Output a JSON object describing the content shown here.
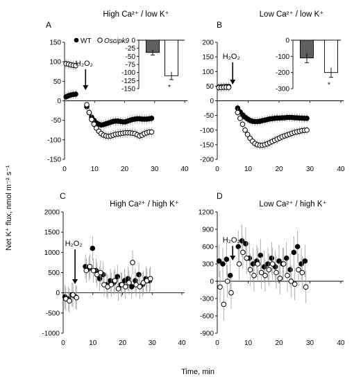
{
  "figure": {
    "shared_ylabel": "Net K⁺ flux, nmol m⁻² s⁻¹",
    "shared_xlabel": "Time, min"
  },
  "chart_data": [
    {
      "panel": "A",
      "type": "scatter",
      "title": "High Ca²⁺ / low K⁺",
      "annotation": "H₂O₂",
      "annotation_time": 7,
      "xlim": [
        0,
        40
      ],
      "ylim": [
        -150,
        150
      ],
      "xticks": [
        0,
        10,
        20,
        30,
        40
      ],
      "yticks": [
        -150,
        -100,
        -50,
        0,
        50,
        100,
        150
      ],
      "legend": [
        {
          "marker": "filled",
          "label": "WT"
        },
        {
          "marker": "open",
          "label": "Oscipk9",
          "italic": true
        }
      ],
      "series": [
        {
          "name": "WT",
          "marker": "filled",
          "errors": 12,
          "x": [
            0.5,
            1.3,
            2.1,
            2.9,
            3.7,
            7.4,
            8.2,
            9.0,
            9.8,
            10.6,
            11.4,
            12.2,
            13.0,
            13.8,
            14.6,
            15.4,
            16.2,
            17.0,
            17.8,
            18.6,
            19.4,
            20.2,
            21.0,
            21.8,
            22.6,
            23.4,
            24.2,
            25.0,
            25.8,
            26.6,
            27.4,
            28.2,
            29.0
          ],
          "y": [
            10,
            13,
            15,
            16,
            17,
            -15,
            -30,
            -42,
            -50,
            -57,
            -60,
            -62,
            -61,
            -59,
            -57,
            -55,
            -53,
            -52,
            -52,
            -53,
            -54,
            -54,
            -52,
            -50,
            -48,
            -47,
            -46,
            -46,
            -47,
            -47,
            -47,
            -46,
            -45
          ]
        },
        {
          "name": "Oscipk9",
          "marker": "open",
          "errors": 12,
          "x": [
            0.5,
            1.3,
            2.1,
            2.9,
            3.7,
            7.4,
            8.2,
            9.0,
            9.8,
            10.6,
            11.4,
            12.2,
            13.0,
            13.8,
            14.6,
            15.4,
            16.2,
            17.0,
            17.8,
            18.6,
            19.4,
            20.2,
            21.0,
            21.8,
            22.6,
            23.4,
            24.2,
            25.0,
            25.8,
            26.6,
            27.4,
            28.2,
            29.0
          ],
          "y": [
            95,
            94,
            92,
            91,
            90,
            -10,
            -30,
            -48,
            -60,
            -70,
            -78,
            -84,
            -88,
            -90,
            -91,
            -90,
            -88,
            -86,
            -85,
            -84,
            -83,
            -82,
            -82,
            -82,
            -83,
            -84,
            -87,
            -90,
            -88,
            -84,
            -82,
            -80,
            -80
          ]
        }
      ],
      "inset": {
        "ylim": [
          -150,
          0
        ],
        "yticks": [
          0,
          -25,
          -50,
          -75,
          -100,
          -125,
          -150
        ],
        "bars": [
          {
            "name": "WT",
            "fill": "#606060",
            "value": -38,
            "error": 8
          },
          {
            "name": "Oscipk9",
            "fill": "#ffffff",
            "value": -110,
            "error": 12
          }
        ],
        "significance": "*"
      }
    },
    {
      "panel": "B",
      "type": "scatter",
      "title": "Low Ca²⁺ / low K⁺",
      "annotation": "H₂O₂",
      "annotation_time": 5,
      "xlim": [
        0,
        40
      ],
      "ylim": [
        -200,
        200
      ],
      "xticks": [
        0,
        10,
        20,
        30,
        40
      ],
      "yticks": [
        -200,
        -150,
        -100,
        -50,
        0,
        50,
        100,
        150,
        200
      ],
      "series": [
        {
          "name": "WT",
          "marker": "filled",
          "errors": 15,
          "x": [
            0.5,
            1.3,
            2.1,
            2.9,
            3.7,
            6.6,
            7.4,
            8.2,
            9.0,
            9.8,
            10.6,
            11.4,
            12.2,
            13.0,
            13.8,
            14.6,
            15.4,
            16.2,
            17.0,
            17.8,
            18.6,
            19.4,
            20.2,
            21.0,
            21.8,
            22.6,
            23.4,
            24.2,
            25.0,
            25.8,
            26.6,
            27.4,
            28.2,
            29.0
          ],
          "y": [
            47,
            48,
            48,
            49,
            49,
            -25,
            -38,
            -48,
            -56,
            -62,
            -67,
            -70,
            -71,
            -71,
            -70,
            -68,
            -66,
            -64,
            -62,
            -61,
            -60,
            -59,
            -59,
            -58,
            -58,
            -57,
            -57,
            -57,
            -58,
            -58,
            -59,
            -59,
            -60,
            -60
          ]
        },
        {
          "name": "Oscipk9",
          "marker": "open",
          "errors": 15,
          "x": [
            0.5,
            1.3,
            2.1,
            2.9,
            3.7,
            6.6,
            7.4,
            8.2,
            9.0,
            9.8,
            10.6,
            11.4,
            12.2,
            13.0,
            13.8,
            14.6,
            15.4,
            16.2,
            17.0,
            17.8,
            18.6,
            19.4,
            20.2,
            21.0,
            21.8,
            22.6,
            23.4,
            24.2,
            25.0,
            25.8,
            26.6,
            27.4,
            28.2,
            29.0
          ],
          "y": [
            45,
            45,
            46,
            46,
            46,
            -40,
            -60,
            -80,
            -100,
            -115,
            -128,
            -138,
            -146,
            -150,
            -152,
            -152,
            -150,
            -147,
            -143,
            -139,
            -135,
            -131,
            -127,
            -123,
            -120,
            -117,
            -114,
            -111,
            -108,
            -106,
            -104,
            -102,
            -101,
            -100
          ]
        }
      ],
      "inset": {
        "ylim": [
          -300,
          0
        ],
        "yticks": [
          0,
          -100,
          -200,
          -300
        ],
        "bars": [
          {
            "name": "WT",
            "fill": "#606060",
            "value": -110,
            "error": 30
          },
          {
            "name": "Oscipk9",
            "fill": "#ffffff",
            "value": -200,
            "error": 30
          }
        ],
        "significance": "*"
      }
    },
    {
      "panel": "C",
      "type": "scatter",
      "title": "High Ca²⁺  / high K⁺",
      "annotation": "H₂O₂",
      "annotation_time": 4,
      "xlim": [
        0,
        40
      ],
      "ylim": [
        -1000,
        2000
      ],
      "xticks": [
        0,
        10,
        20,
        30,
        40
      ],
      "yticks": [
        -1000,
        -500,
        0,
        500,
        1000,
        1500,
        2000
      ],
      "series": [
        {
          "name": "WT",
          "marker": "filled",
          "errors": 300,
          "x": [
            0.6,
            1.8,
            3.0,
            4.2,
            7.5,
            8.7,
            9.9,
            11.1,
            12.3,
            13.5,
            14.7,
            15.9,
            17.1,
            18.3,
            19.5,
            20.7,
            21.9,
            23.1,
            24.3,
            25.5,
            26.7,
            27.9,
            29.1
          ],
          "y": [
            -100,
            -150,
            -50,
            -100,
            650,
            600,
            1100,
            550,
            350,
            450,
            200,
            300,
            250,
            400,
            200,
            300,
            350,
            150,
            300,
            450,
            200,
            350,
            300
          ]
        },
        {
          "name": "Oscipk9",
          "marker": "open",
          "errors": 300,
          "x": [
            0.9,
            2.1,
            3.3,
            4.5,
            7.8,
            9.0,
            10.2,
            11.4,
            12.6,
            13.8,
            15.0,
            16.2,
            17.4,
            18.6,
            19.8,
            21.0,
            22.2,
            23.4,
            24.6,
            25.8,
            27.0,
            28.2,
            29.4
          ],
          "y": [
            -150,
            -200,
            -50,
            -120,
            550,
            650,
            550,
            450,
            500,
            200,
            150,
            200,
            300,
            100,
            200,
            150,
            250,
            750,
            200,
            150,
            250,
            300,
            350
          ]
        }
      ]
    },
    {
      "panel": "D",
      "type": "scatter",
      "title": "Low Ca²⁺ / high K⁺",
      "annotation": "H₂O₂",
      "annotation_time": 5,
      "xlim": [
        0,
        40
      ],
      "ylim": [
        -900,
        1200
      ],
      "xticks": [
        0,
        10,
        20,
        30,
        40
      ],
      "yticks": [
        -900,
        -600,
        -300,
        0,
        300,
        600,
        900,
        1200
      ],
      "series": [
        {
          "name": "WT",
          "marker": "filled",
          "errors": 280,
          "x": [
            0.6,
            1.8,
            3.0,
            4.2,
            6.8,
            8.0,
            9.2,
            10.4,
            11.6,
            12.8,
            14.0,
            15.2,
            16.4,
            17.6,
            18.8,
            20.0,
            21.2,
            22.4,
            23.6,
            24.8,
            26.0,
            27.2,
            28.4
          ],
          "y": [
            350,
            300,
            380,
            100,
            600,
            700,
            650,
            400,
            300,
            350,
            450,
            250,
            300,
            400,
            250,
            350,
            300,
            400,
            200,
            500,
            600,
            300,
            350
          ]
        },
        {
          "name": "Oscipk9",
          "marker": "open",
          "errors": 280,
          "x": [
            0.9,
            2.1,
            3.3,
            4.5,
            7.1,
            8.3,
            9.5,
            10.7,
            11.9,
            13.1,
            14.3,
            15.5,
            16.7,
            17.9,
            19.1,
            20.3,
            21.5,
            22.7,
            23.9,
            25.1,
            26.3,
            27.5,
            28.7
          ],
          "y": [
            -100,
            -400,
            0,
            -200,
            300,
            500,
            400,
            200,
            100,
            300,
            150,
            100,
            200,
            300,
            150,
            50,
            300,
            100,
            0,
            -50,
            200,
            150,
            -100
          ]
        }
      ]
    }
  ]
}
